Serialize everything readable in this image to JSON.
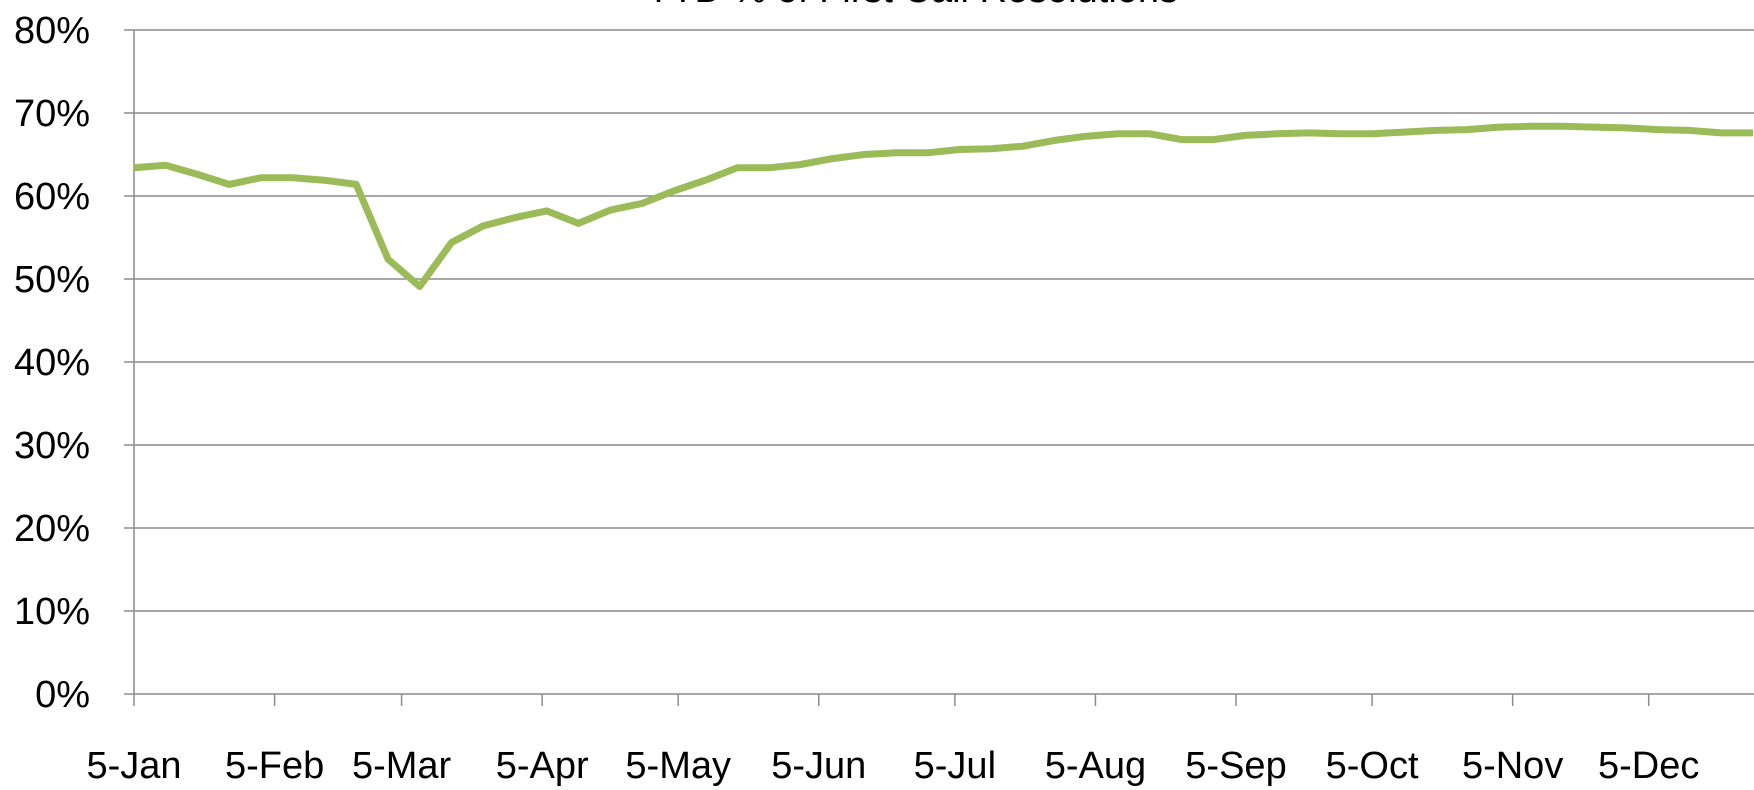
{
  "chart_data": {
    "type": "line",
    "title": "YTD % of First Call Resolutions",
    "x": [
      "5-Jan",
      "12-Jan",
      "19-Jan",
      "26-Jan",
      "2-Feb",
      "9-Feb",
      "16-Feb",
      "23-Feb",
      "2-Mar",
      "9-Mar",
      "16-Mar",
      "23-Mar",
      "30-Mar",
      "6-Apr",
      "13-Apr",
      "20-Apr",
      "27-Apr",
      "4-May",
      "11-May",
      "18-May",
      "25-May",
      "1-Jun",
      "8-Jun",
      "15-Jun",
      "22-Jun",
      "29-Jun",
      "6-Jul",
      "13-Jul",
      "20-Jul",
      "27-Jul",
      "3-Aug",
      "10-Aug",
      "17-Aug",
      "24-Aug",
      "31-Aug",
      "7-Sep",
      "14-Sep",
      "21-Sep",
      "28-Sep",
      "5-Oct",
      "12-Oct",
      "19-Oct",
      "26-Oct",
      "2-Nov",
      "9-Nov",
      "16-Nov",
      "23-Nov",
      "30-Nov",
      "7-Dec",
      "14-Dec",
      "21-Dec",
      "28-Dec"
    ],
    "series": [
      {
        "color": "#9bbb59",
        "values": [
          63.4,
          63.7,
          62.6,
          61.4,
          62.2,
          62.2,
          61.9,
          61.4,
          52.4,
          49.1,
          54.4,
          56.4,
          57.4,
          58.2,
          56.7,
          58.3,
          59.1,
          60.6,
          61.9,
          63.4,
          63.4,
          63.8,
          64.5,
          65.0,
          65.2,
          65.2,
          65.6,
          65.7,
          66.0,
          66.7,
          67.2,
          67.5,
          67.5,
          66.8,
          66.8,
          67.3,
          67.5,
          67.6,
          67.5,
          67.5,
          67.7,
          67.9,
          68.0,
          68.3,
          68.4,
          68.4,
          68.3,
          68.2,
          68.0,
          67.9,
          67.6,
          67.6
        ]
      }
    ],
    "xlim": [
      "5-Jan",
      "28-Dec"
    ],
    "xticks": [
      "5-Jan",
      "5-Feb",
      "5-Mar",
      "5-Apr",
      "5-May",
      "5-Jun",
      "5-Jul",
      "5-Aug",
      "5-Sep",
      "5-Oct",
      "5-Nov",
      "5-Dec"
    ],
    "ylim": [
      0,
      80
    ],
    "yticks": [
      {
        "value": 0,
        "label": "0%"
      },
      {
        "value": 10,
        "label": "10%"
      },
      {
        "value": 20,
        "label": "20%"
      },
      {
        "value": 30,
        "label": "30%"
      },
      {
        "value": 40,
        "label": "40%"
      },
      {
        "value": 50,
        "label": "50%"
      },
      {
        "value": 60,
        "label": "60%"
      },
      {
        "value": 70,
        "label": "70%"
      },
      {
        "value": 80,
        "label": "80%"
      }
    ],
    "grid": true
  }
}
